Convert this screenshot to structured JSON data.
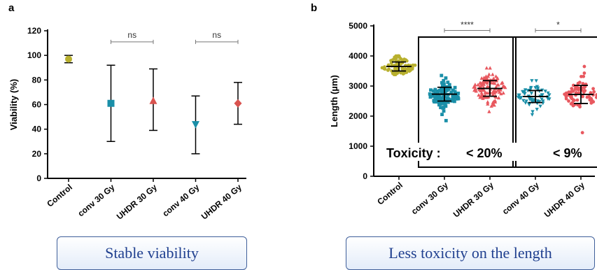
{
  "chart_data": [
    {
      "panel_label": "a",
      "type": "scatter",
      "ylabel": "Viability (%)",
      "xlabel": "",
      "categories": [
        "Control",
        "conv 30 Gy",
        "UHDR 30 Gy",
        "conv 40 Gy",
        "UHDR 40 Gy"
      ],
      "ylim": [
        0,
        120
      ],
      "yticks": [
        0,
        20,
        40,
        60,
        80,
        100,
        120
      ],
      "points": [
        {
          "category": "Control",
          "mean": 97,
          "low": 94,
          "high": 100,
          "marker": "circle",
          "color": "#b8b02e"
        },
        {
          "category": "conv 30 Gy",
          "mean": 61,
          "low": 30,
          "high": 92,
          "marker": "square",
          "color": "#1a8fa8"
        },
        {
          "category": "UHDR 30 Gy",
          "mean": 63,
          "low": 39,
          "high": 89,
          "marker": "triangle-up",
          "color": "#d9534f"
        },
        {
          "category": "conv 40 Gy",
          "mean": 44,
          "low": 20,
          "high": 67,
          "marker": "triangle-down",
          "color": "#1a8fa8"
        },
        {
          "category": "UHDR 40 Gy",
          "mean": 61,
          "low": 44,
          "high": 78,
          "marker": "diamond",
          "color": "#d9534f"
        }
      ],
      "annotations": [
        {
          "from": "conv 30 Gy",
          "to": "UHDR 30 Gy",
          "label": "ns",
          "y": 111
        },
        {
          "from": "conv 40 Gy",
          "to": "UHDR 40 Gy",
          "label": "ns",
          "y": 111
        }
      ],
      "grid": false
    },
    {
      "panel_label": "b",
      "type": "scatter",
      "ylabel": "Length (µm)",
      "xlabel": "",
      "categories": [
        "Control",
        "conv 30 Gy",
        "UHDR 30 Gy",
        "conv 40 Gy",
        "UHDR 40 Gy"
      ],
      "ylim": [
        0,
        5000
      ],
      "yticks": [
        0,
        1000,
        2000,
        3000,
        4000,
        5000
      ],
      "groups": [
        {
          "category": "Control",
          "mean": 3650,
          "sd": 150,
          "min": 3380,
          "max": 4000,
          "n": 80,
          "marker": "circle",
          "color": "#b8b02e"
        },
        {
          "category": "conv 30 Gy",
          "mean": 2730,
          "sd": 230,
          "min": 1850,
          "max": 3350,
          "n": 110,
          "marker": "square",
          "color": "#1a8fa8"
        },
        {
          "category": "UHDR 30 Gy",
          "mean": 2920,
          "sd": 260,
          "min": 2150,
          "max": 3600,
          "n": 110,
          "marker": "triangle-up",
          "color": "#e8585f"
        },
        {
          "category": "conv 40 Gy",
          "mean": 2650,
          "sd": 200,
          "min": 2050,
          "max": 3180,
          "n": 60,
          "marker": "triangle-down",
          "color": "#1a8fa8"
        },
        {
          "category": "UHDR 40 Gy",
          "mean": 2720,
          "sd": 300,
          "min": 1450,
          "max": 3650,
          "n": 70,
          "marker": "circle",
          "color": "#e8585f"
        }
      ],
      "annotations": [
        {
          "from": "conv 30 Gy",
          "to": "UHDR 30 Gy",
          "label": "****",
          "y": 4850
        },
        {
          "from": "conv 40 Gy",
          "to": "UHDR 40 Gy",
          "label": "*",
          "y": 4850
        }
      ],
      "toxicity_label": "Toxicity :",
      "toxicity_values": [
        "< 20%",
        "< 9%"
      ],
      "grid": false
    }
  ],
  "captions": {
    "left": "Stable viability",
    "right": "Less toxicity on the length"
  }
}
